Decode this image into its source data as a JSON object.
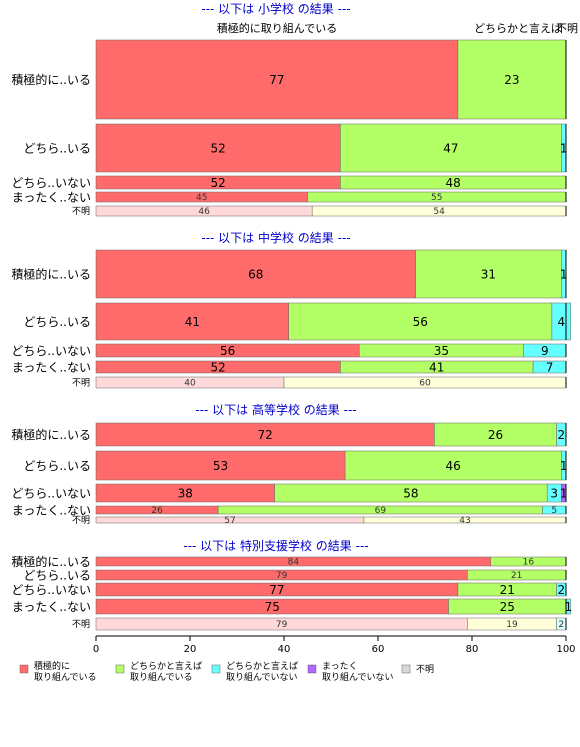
{
  "chart_data": {
    "type": "bar",
    "orientation": "horizontal",
    "stacked": true,
    "xlim": [
      0,
      100
    ],
    "x_ticks": [
      0,
      20,
      40,
      60,
      80,
      100
    ],
    "top_labels": [
      "積極的に取り組んでいる",
      "どちらかと言えば",
      "不明"
    ],
    "legend": {
      "position": "bottom",
      "entries": [
        {
          "label_lines": [
            "積極的に",
            "取り組んでいる"
          ],
          "color": "#ff6b6b"
        },
        {
          "label_lines": [
            "どちらかと言えば",
            "取り組んでいる"
          ],
          "color": "#b3ff66"
        },
        {
          "label_lines": [
            "どちらかと言えば",
            "取り組んでいない"
          ],
          "color": "#66ffff"
        },
        {
          "label_lines": [
            "まったく",
            "取り組んでいない"
          ],
          "color": "#b366ff"
        },
        {
          "label_lines": [
            "不明"
          ],
          "color": "#d9d9d9"
        }
      ]
    },
    "sections": [
      {
        "title": "--- 以下は 小学校 の結果 ---",
        "rows": [
          {
            "label": "積極的に..いる",
            "values": [
              77,
              23,
              0,
              0
            ]
          },
          {
            "label": "どちら..いる",
            "values": [
              52,
              47,
              1,
              0
            ]
          },
          {
            "label": "どちら..いない",
            "values": [
              52,
              48,
              0,
              0
            ]
          },
          {
            "label": "まったく..ない",
            "values": [
              45,
              55,
              0,
              0
            ]
          },
          {
            "label": "不明",
            "values": [
              46,
              54
            ],
            "unknown": true
          }
        ]
      },
      {
        "title": "--- 以下は 中学校 の結果 ---",
        "rows": [
          {
            "label": "積極的に..いる",
            "values": [
              68,
              31,
              1,
              0
            ]
          },
          {
            "label": "どちら..いる",
            "values": [
              41,
              56,
              4,
              0
            ]
          },
          {
            "label": "どちら..いない",
            "values": [
              56,
              35,
              9,
              0
            ]
          },
          {
            "label": "まったく..ない",
            "values": [
              52,
              41,
              7,
              0
            ]
          },
          {
            "label": "不明",
            "values": [
              40,
              60
            ],
            "unknown": true
          }
        ]
      },
      {
        "title": "--- 以下は 高等学校 の結果 ---",
        "rows": [
          {
            "label": "積極的に..いる",
            "values": [
              72,
              26,
              2,
              0
            ]
          },
          {
            "label": "どちら..いる",
            "values": [
              53,
              46,
              1,
              0
            ]
          },
          {
            "label": "どちら..いない",
            "values": [
              38,
              58,
              3,
              1
            ]
          },
          {
            "label": "まったく..ない",
            "values": [
              26,
              69,
              5,
              0
            ]
          },
          {
            "label": "不明",
            "values": [
              57,
              43
            ],
            "unknown": true
          }
        ]
      },
      {
        "title": "--- 以下は 特別支援学校 の結果 ---",
        "rows": [
          {
            "label": "積極的に..いる",
            "values": [
              84,
              16,
              0,
              0
            ]
          },
          {
            "label": "どちら..いる",
            "values": [
              79,
              21,
              0,
              0
            ]
          },
          {
            "label": "どちら..いない",
            "values": [
              77,
              21,
              2,
              0
            ]
          },
          {
            "label": "まったく..ない",
            "values": [
              75,
              25,
              1,
              0
            ]
          },
          {
            "label": "不明",
            "values": [
              79,
              19,
              2
            ],
            "unknown": true
          }
        ]
      }
    ]
  }
}
